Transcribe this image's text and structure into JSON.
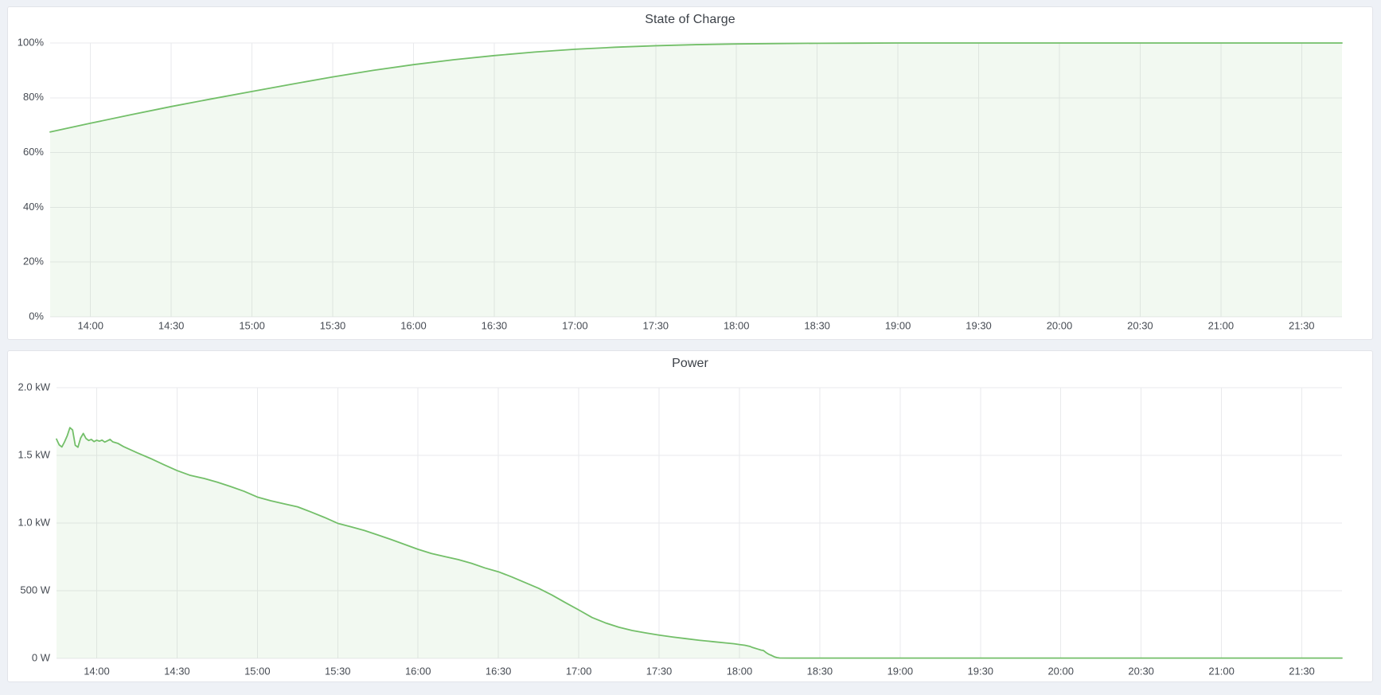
{
  "page": {
    "background_color": "#eef1f6",
    "panel_background": "#ffffff",
    "panel_border_color": "#e2e4e9",
    "grid_color": "#e9eaec",
    "tick_text_color": "#464b53",
    "title_text_color": "#3c4148",
    "accent_green": "#73BF69"
  },
  "time_axis": {
    "start_minutes": 0,
    "end_minutes": 480,
    "start_label_hint": "13:45",
    "end_label_hint": "21:45"
  },
  "chart_data": [
    {
      "type": "area",
      "title": "State of Charge",
      "unit": "percent",
      "ylim": [
        0,
        100
      ],
      "grid": true,
      "legend": "none",
      "line_color": "#73BF69",
      "fill_color": "rgba(115,191,105,0.09)",
      "y_ticks": [
        {
          "label": "0%",
          "value": 0
        },
        {
          "label": "20%",
          "value": 20
        },
        {
          "label": "40%",
          "value": 40
        },
        {
          "label": "60%",
          "value": 60
        },
        {
          "label": "80%",
          "value": 80
        },
        {
          "label": "100%",
          "value": 100
        }
      ],
      "x_ticks": [
        {
          "label": "14:00",
          "minutes": 15
        },
        {
          "label": "14:30",
          "minutes": 45
        },
        {
          "label": "15:00",
          "minutes": 75
        },
        {
          "label": "15:30",
          "minutes": 105
        },
        {
          "label": "16:00",
          "minutes": 135
        },
        {
          "label": "16:30",
          "minutes": 165
        },
        {
          "label": "17:00",
          "minutes": 195
        },
        {
          "label": "17:30",
          "minutes": 225
        },
        {
          "label": "18:00",
          "minutes": 255
        },
        {
          "label": "18:30",
          "minutes": 285
        },
        {
          "label": "19:00",
          "minutes": 315
        },
        {
          "label": "19:30",
          "minutes": 345
        },
        {
          "label": "20:00",
          "minutes": 375
        },
        {
          "label": "20:30",
          "minutes": 405
        },
        {
          "label": "21:00",
          "minutes": 435
        },
        {
          "label": "21:30",
          "minutes": 465
        }
      ],
      "points": [
        [
          0,
          67.5
        ],
        [
          15,
          70.7
        ],
        [
          30,
          73.8
        ],
        [
          45,
          76.8
        ],
        [
          60,
          79.6
        ],
        [
          75,
          82.3
        ],
        [
          90,
          85.0
        ],
        [
          105,
          87.6
        ],
        [
          120,
          90.0
        ],
        [
          135,
          92.1
        ],
        [
          150,
          93.9
        ],
        [
          165,
          95.4
        ],
        [
          180,
          96.7
        ],
        [
          195,
          97.7
        ],
        [
          210,
          98.45
        ],
        [
          225,
          99.0
        ],
        [
          240,
          99.4
        ],
        [
          255,
          99.65
        ],
        [
          270,
          99.8
        ],
        [
          285,
          99.9
        ],
        [
          300,
          99.95
        ],
        [
          315,
          100
        ],
        [
          330,
          100
        ],
        [
          345,
          100
        ],
        [
          360,
          100
        ],
        [
          375,
          100
        ],
        [
          390,
          100
        ],
        [
          405,
          100
        ],
        [
          420,
          100
        ],
        [
          435,
          100
        ],
        [
          450,
          100
        ],
        [
          465,
          100
        ],
        [
          480,
          100
        ]
      ]
    },
    {
      "type": "area",
      "title": "Power",
      "unit": "watt",
      "ylim": [
        0,
        2000
      ],
      "grid": true,
      "legend": "none",
      "line_color": "#73BF69",
      "fill_color": "rgba(115,191,105,0.09)",
      "y_ticks": [
        {
          "label": "0 W",
          "value": 0
        },
        {
          "label": "500 W",
          "value": 500
        },
        {
          "label": "1.0 kW",
          "value": 1000
        },
        {
          "label": "1.5 kW",
          "value": 1500
        },
        {
          "label": "2.0 kW",
          "value": 2000
        }
      ],
      "x_ticks": [
        {
          "label": "14:00",
          "minutes": 15
        },
        {
          "label": "14:30",
          "minutes": 45
        },
        {
          "label": "15:00",
          "minutes": 75
        },
        {
          "label": "15:30",
          "minutes": 105
        },
        {
          "label": "16:00",
          "minutes": 135
        },
        {
          "label": "16:30",
          "minutes": 165
        },
        {
          "label": "17:00",
          "minutes": 195
        },
        {
          "label": "17:30",
          "minutes": 225
        },
        {
          "label": "18:00",
          "minutes": 255
        },
        {
          "label": "18:30",
          "minutes": 285
        },
        {
          "label": "19:00",
          "minutes": 315
        },
        {
          "label": "19:30",
          "minutes": 345
        },
        {
          "label": "20:00",
          "minutes": 375
        },
        {
          "label": "20:30",
          "minutes": 405
        },
        {
          "label": "21:00",
          "minutes": 435
        },
        {
          "label": "21:30",
          "minutes": 465
        }
      ],
      "points": [
        [
          0,
          1620
        ],
        [
          1,
          1578
        ],
        [
          2,
          1562
        ],
        [
          3,
          1600
        ],
        [
          4,
          1645
        ],
        [
          5,
          1705
        ],
        [
          6,
          1688
        ],
        [
          7,
          1575
        ],
        [
          8,
          1560
        ],
        [
          9,
          1628
        ],
        [
          10,
          1662
        ],
        [
          11,
          1625
        ],
        [
          12,
          1610
        ],
        [
          13,
          1618
        ],
        [
          14,
          1602
        ],
        [
          15,
          1612
        ],
        [
          16,
          1605
        ],
        [
          17,
          1613
        ],
        [
          18,
          1598
        ],
        [
          19,
          1608
        ],
        [
          20,
          1618
        ],
        [
          21,
          1600
        ],
        [
          23,
          1588
        ],
        [
          25,
          1565
        ],
        [
          30,
          1520
        ],
        [
          35,
          1478
        ],
        [
          40,
          1432
        ],
        [
          45,
          1388
        ],
        [
          50,
          1352
        ],
        [
          55,
          1330
        ],
        [
          60,
          1302
        ],
        [
          65,
          1270
        ],
        [
          70,
          1235
        ],
        [
          75,
          1192
        ],
        [
          80,
          1165
        ],
        [
          85,
          1142
        ],
        [
          90,
          1120
        ],
        [
          95,
          1082
        ],
        [
          100,
          1042
        ],
        [
          105,
          998
        ],
        [
          110,
          972
        ],
        [
          115,
          945
        ],
        [
          120,
          912
        ],
        [
          125,
          878
        ],
        [
          130,
          842
        ],
        [
          135,
          806
        ],
        [
          140,
          775
        ],
        [
          145,
          752
        ],
        [
          150,
          730
        ],
        [
          155,
          702
        ],
        [
          160,
          668
        ],
        [
          165,
          640
        ],
        [
          170,
          602
        ],
        [
          175,
          560
        ],
        [
          180,
          518
        ],
        [
          185,
          468
        ],
        [
          190,
          412
        ],
        [
          195,
          358
        ],
        [
          200,
          302
        ],
        [
          205,
          262
        ],
        [
          210,
          230
        ],
        [
          215,
          206
        ],
        [
          220,
          188
        ],
        [
          225,
          172
        ],
        [
          230,
          158
        ],
        [
          235,
          146
        ],
        [
          240,
          134
        ],
        [
          245,
          124
        ],
        [
          250,
          114
        ],
        [
          253,
          108
        ],
        [
          255,
          102
        ],
        [
          257,
          97
        ],
        [
          259,
          88
        ],
        [
          260,
          80
        ],
        [
          262,
          68
        ],
        [
          263,
          62
        ],
        [
          264,
          58
        ],
        [
          265,
          42
        ],
        [
          266,
          30
        ],
        [
          267,
          22
        ],
        [
          268,
          12
        ],
        [
          269,
          6
        ],
        [
          270,
          3
        ],
        [
          275,
          2
        ],
        [
          280,
          2
        ],
        [
          290,
          2
        ],
        [
          300,
          2
        ],
        [
          315,
          2
        ],
        [
          330,
          2
        ],
        [
          345,
          2
        ],
        [
          360,
          2
        ],
        [
          375,
          2
        ],
        [
          390,
          2
        ],
        [
          405,
          2
        ],
        [
          420,
          2
        ],
        [
          435,
          2
        ],
        [
          450,
          2
        ],
        [
          465,
          2
        ],
        [
          480,
          2
        ]
      ]
    }
  ]
}
